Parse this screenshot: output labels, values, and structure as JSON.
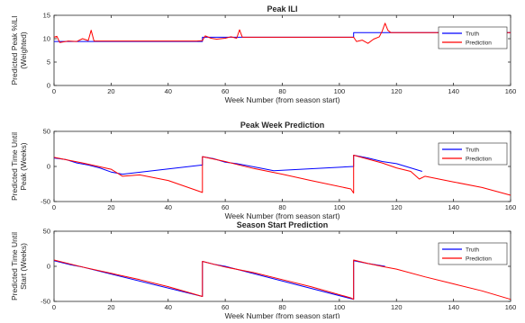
{
  "colors": {
    "truth": "#0000ff",
    "prediction": "#ff0000",
    "axis": "#262626",
    "background": "#ffffff"
  },
  "chart_data": [
    {
      "type": "line",
      "title": "Peak ILI",
      "xlabel": "Week Number (from season start)",
      "ylabel": [
        "Predicted Peak %ILI",
        "(Weighted)"
      ],
      "xlim": [
        0,
        160
      ],
      "ylim": [
        0,
        15
      ],
      "xticks": [
        "0",
        "20",
        "40",
        "60",
        "80",
        "100",
        "120",
        "140",
        "160"
      ],
      "yticks": [
        "0",
        "5",
        "10",
        "15"
      ],
      "legend_position": "right",
      "series": [
        {
          "name": "Truth",
          "x": [
            0,
            14,
            52,
            52,
            66,
            105,
            105,
            118,
            160
          ],
          "y": [
            9.4,
            9.4,
            9.4,
            10.3,
            10.3,
            10.3,
            11.3,
            11.3,
            11.3
          ]
        },
        {
          "name": "Prediction",
          "x": [
            0,
            1,
            2,
            5,
            8,
            10,
            12,
            13,
            14,
            20,
            30,
            40,
            50,
            52,
            53,
            55,
            57,
            60,
            62,
            64,
            65,
            66,
            70,
            80,
            90,
            100,
            105,
            106,
            108,
            110,
            112,
            114,
            115,
            116,
            117,
            118,
            120,
            130,
            140,
            150,
            160
          ],
          "y": [
            10.3,
            10.5,
            9.2,
            9.5,
            9.4,
            10.0,
            9.6,
            11.8,
            9.5,
            9.5,
            9.5,
            9.5,
            9.5,
            9.6,
            10.6,
            10.1,
            9.9,
            10.1,
            10.4,
            10.1,
            11.9,
            10.3,
            10.3,
            10.3,
            10.3,
            10.3,
            10.3,
            9.4,
            9.7,
            9.0,
            9.9,
            10.4,
            11.6,
            13.3,
            11.8,
            11.3,
            11.3,
            11.3,
            11.3,
            11.3,
            11.3
          ]
        }
      ]
    },
    {
      "type": "line",
      "title": "Peak Week Prediction",
      "xlabel": "Week Number (from season start)",
      "ylabel": [
        "Predicted Time Until",
        "Peak (Weeks)"
      ],
      "xlim": [
        0,
        160
      ],
      "ylim": [
        -50,
        50
      ],
      "xticks": [
        "0",
        "20",
        "40",
        "60",
        "80",
        "100",
        "120",
        "140",
        "160"
      ],
      "yticks": [
        "-50",
        "0",
        "50"
      ],
      "legend_position": "right",
      "series": [
        {
          "name": "Truth",
          "x": [
            0,
            4,
            8,
            12,
            16,
            20,
            24,
            52,
            52,
            56,
            60,
            64,
            68,
            72,
            77,
            105,
            105,
            110,
            115,
            120,
            125,
            129
          ],
          "y": [
            12,
            10,
            5,
            2,
            -2,
            -8,
            -11,
            2,
            14,
            11,
            6,
            4,
            1,
            -2,
            -6,
            0,
            16,
            12,
            7,
            4,
            -2,
            -7
          ]
        },
        {
          "name": "Prediction",
          "x": [
            0,
            10,
            20,
            24,
            30,
            40,
            52,
            52,
            60,
            70,
            80,
            90,
            104,
            105,
            105,
            115,
            120,
            125,
            128,
            130,
            140,
            150,
            160
          ],
          "y": [
            13,
            5,
            -4,
            -14,
            -12,
            -20,
            -37,
            14,
            7,
            -3,
            -11,
            -20,
            -32,
            -38,
            16,
            5,
            -2,
            -7,
            -18,
            -14,
            -22,
            -30,
            -41
          ]
        }
      ]
    },
    {
      "type": "line",
      "title": "Season Start Prediction",
      "xlabel": "Week Number (from season start)",
      "ylabel": [
        "Predicted Time Until",
        "Start (Weeks)"
      ],
      "xlim": [
        0,
        160
      ],
      "ylim": [
        -50,
        50
      ],
      "xticks": [
        "0",
        "20",
        "40",
        "60",
        "80",
        "100",
        "120",
        "140",
        "160"
      ],
      "yticks": [
        "-50",
        "0",
        "50"
      ],
      "legend_position": "right",
      "series": [
        {
          "name": "Truth",
          "x": [
            0,
            6,
            10,
            52,
            52,
            56,
            60,
            104,
            105,
            105,
            110,
            116
          ],
          "y": [
            8,
            2,
            -1,
            -43,
            7,
            3,
            0,
            -46,
            -47,
            8,
            4,
            0
          ]
        },
        {
          "name": "Prediction",
          "x": [
            0,
            6,
            10,
            20,
            30,
            40,
            52,
            52,
            56,
            60,
            70,
            80,
            90,
            104,
            105,
            105,
            110,
            116,
            120,
            130,
            140,
            150,
            160
          ],
          "y": [
            9,
            3,
            -1,
            -10,
            -19,
            -29,
            -43,
            7,
            3,
            -1,
            -9,
            -19,
            -29,
            -45,
            -47,
            9,
            4,
            -1,
            -4,
            -15,
            -25,
            -35,
            -47
          ]
        }
      ]
    }
  ]
}
